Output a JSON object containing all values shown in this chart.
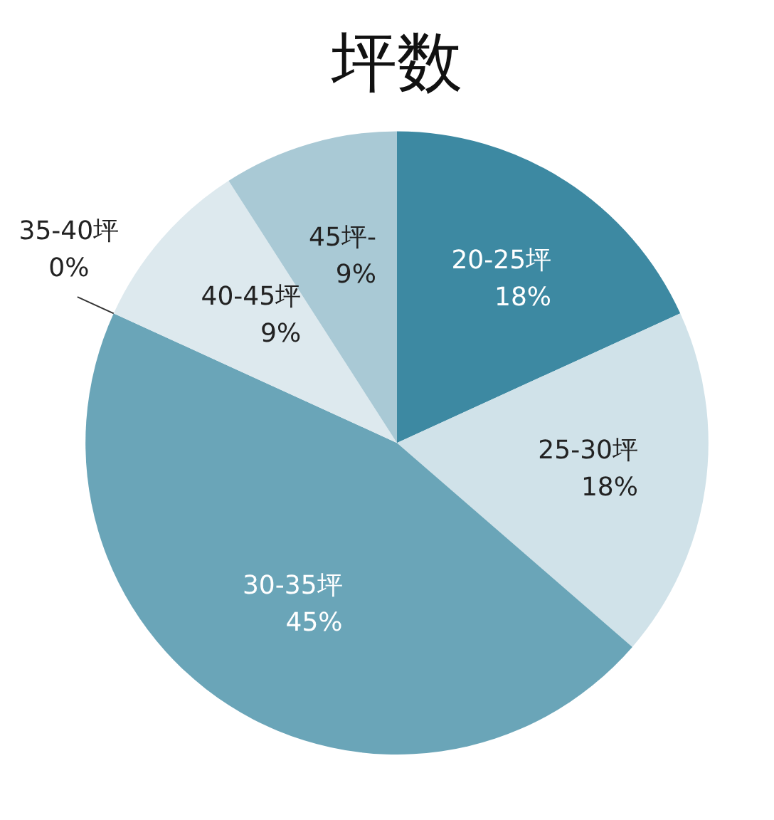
{
  "chart_data": {
    "type": "pie",
    "title": "坪数",
    "categories": [
      "20-25坪",
      "25-30坪",
      "30-35坪",
      "35-40坪",
      "40-45坪",
      "45坪-"
    ],
    "values": [
      18,
      18,
      45,
      0,
      9,
      9
    ],
    "colors": [
      "#3d89a2",
      "#d0e2e9",
      "#6aa5b8",
      "#b8d3dd",
      "#dde9ee",
      "#a9c9d5"
    ],
    "value_labels": [
      "18%",
      "18%",
      "45%",
      "0%",
      "9%",
      "9%"
    ]
  }
}
